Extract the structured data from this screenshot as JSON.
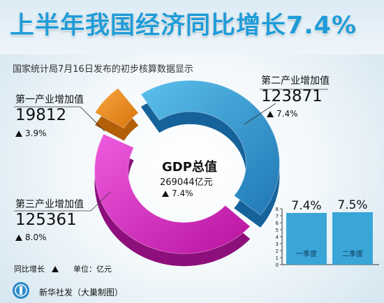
{
  "title": "上半年我国经济同比增长7.4%",
  "subtitle": "国家统计局7月16日发布的初步核算数据显示",
  "center": {
    "title": "GDP总值",
    "value": "269044亿元",
    "growth": "7.4%"
  },
  "legend": {
    "growth_label": "同比增长",
    "unit_label": "单位：亿元"
  },
  "source": "新华社发（大巢制图）",
  "colors": {
    "title": "#1f9cd8",
    "primary": "#f08a1c",
    "secondary": "#2c8cc9",
    "tertiary": "#d01ec0",
    "bars": "#3aa6d8"
  },
  "chart_data": [
    {
      "type": "pie",
      "total": 269044,
      "total_growth": "7.4%",
      "slices": [
        {
          "name": "第一产业增加值",
          "value": 19812,
          "growth": "3.9%",
          "color": "#f08a1c"
        },
        {
          "name": "第二产业增加值",
          "value": 123871,
          "growth": "7.4%",
          "color": "#2c8cc9"
        },
        {
          "name": "第三产业增加值",
          "value": 125361,
          "growth": "8.0%",
          "color": "#d01ec0"
        }
      ]
    },
    {
      "type": "bar",
      "categories": [
        "一季度",
        "二季度"
      ],
      "values": [
        7.4,
        7.5
      ],
      "value_labels": [
        "7.4%",
        "7.5%"
      ],
      "ylim": [
        0,
        8
      ],
      "yticks": [
        "0",
        "1",
        "2",
        "3",
        "4",
        "5",
        "6",
        "7",
        "8"
      ],
      "grid": false
    }
  ]
}
